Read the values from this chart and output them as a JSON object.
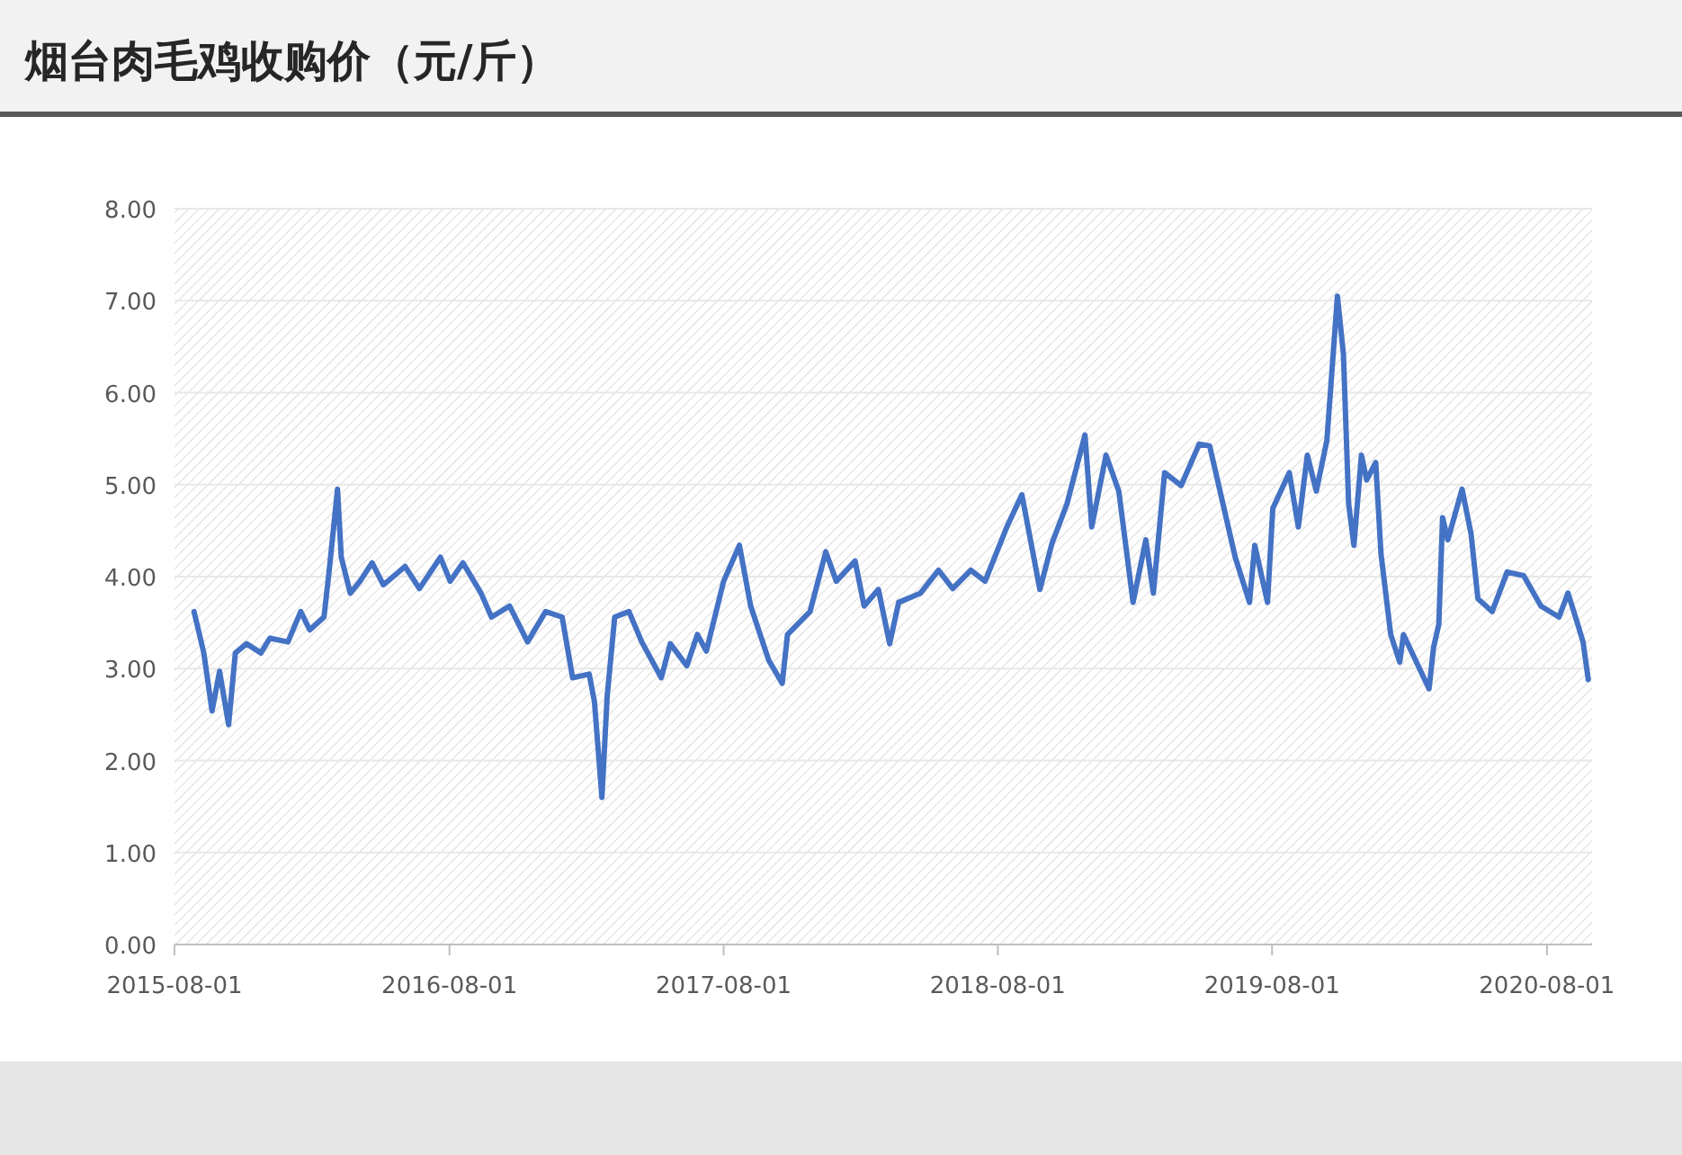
{
  "chart_data": {
    "type": "line",
    "title": "烟台肉毛鸡收购价（元/斤）",
    "x": [
      "2015-08-27",
      "2015-09-09",
      "2015-09-20",
      "2015-09-30",
      "2015-10-12",
      "2015-10-21",
      "2015-11-05",
      "2015-11-24",
      "2015-12-06",
      "2015-12-30",
      "2016-01-16",
      "2016-01-28",
      "2016-02-16",
      "2016-02-23",
      "2016-03-05",
      "2016-03-10",
      "2016-03-22",
      "2016-04-04",
      "2016-04-20",
      "2016-05-05",
      "2016-06-03",
      "2016-06-22",
      "2016-07-20",
      "2016-08-02",
      "2016-08-19",
      "2016-09-12",
      "2016-09-26",
      "2016-10-20",
      "2016-11-13",
      "2016-12-07",
      "2016-12-29",
      "2017-01-12",
      "2017-02-03",
      "2017-02-10",
      "2017-02-20",
      "2017-02-27",
      "2017-03-09",
      "2017-03-28",
      "2017-04-14",
      "2017-05-10",
      "2017-05-22",
      "2017-06-13",
      "2017-06-27",
      "2017-07-09",
      "2017-08-01",
      "2017-08-22",
      "2017-09-06",
      "2017-09-30",
      "2017-10-18",
      "2017-10-25",
      "2017-11-24",
      "2017-12-15",
      "2017-12-29",
      "2018-01-23",
      "2018-02-04",
      "2018-02-23",
      "2018-03-10",
      "2018-03-22",
      "2018-04-20",
      "2018-05-14",
      "2018-06-02",
      "2018-06-26",
      "2018-07-15",
      "2018-08-13",
      "2018-09-02",
      "2018-09-26",
      "2018-10-12",
      "2018-11-01",
      "2018-11-25",
      "2018-12-04",
      "2018-12-23",
      "2019-01-09",
      "2019-01-28",
      "2019-02-14",
      "2019-02-24",
      "2019-03-11",
      "2019-04-02",
      "2019-04-26",
      "2019-05-10",
      "2019-06-13",
      "2019-07-02",
      "2019-07-09",
      "2019-07-26",
      "2019-08-02",
      "2019-08-24",
      "2019-09-05",
      "2019-09-17",
      "2019-09-29",
      "2019-10-13",
      "2019-10-27",
      "2019-11-04",
      "2019-11-11",
      "2019-11-18",
      "2019-11-28",
      "2019-12-05",
      "2019-12-17",
      "2019-12-24",
      "2020-01-06",
      "2020-01-18",
      "2020-01-23",
      "2020-02-26",
      "2020-03-03",
      "2020-03-10",
      "2020-03-15",
      "2020-03-22",
      "2020-04-10",
      "2020-04-22",
      "2020-05-01",
      "2020-05-20",
      "2020-06-09",
      "2020-07-01",
      "2020-07-24",
      "2020-08-17",
      "2020-08-29",
      "2020-09-11",
      "2020-09-18",
      "2020-09-25"
    ],
    "values": [
      3.62,
      3.17,
      2.54,
      2.97,
      2.39,
      3.17,
      3.27,
      3.17,
      3.33,
      3.29,
      3.62,
      3.42,
      3.56,
      4.07,
      4.95,
      4.21,
      3.82,
      3.95,
      4.15,
      3.91,
      4.11,
      3.87,
      4.21,
      3.95,
      4.15,
      3.82,
      3.56,
      3.68,
      3.29,
      3.62,
      3.56,
      2.9,
      2.94,
      2.64,
      1.6,
      2.7,
      3.56,
      3.62,
      3.29,
      2.9,
      3.27,
      3.03,
      3.37,
      3.19,
      3.95,
      4.34,
      3.68,
      3.09,
      2.84,
      3.37,
      3.62,
      4.27,
      3.95,
      4.17,
      3.68,
      3.86,
      3.27,
      3.72,
      3.82,
      4.07,
      3.87,
      4.07,
      3.95,
      4.54,
      4.89,
      3.86,
      4.36,
      4.79,
      5.54,
      4.54,
      5.32,
      4.93,
      3.72,
      4.4,
      3.82,
      5.13,
      4.99,
      5.44,
      5.42,
      4.21,
      3.72,
      4.34,
      3.72,
      4.74,
      5.13,
      4.54,
      5.32,
      4.93,
      5.48,
      7.05,
      6.42,
      4.79,
      4.34,
      5.32,
      5.05,
      5.24,
      4.25,
      3.37,
      3.07,
      3.37,
      2.78,
      3.23,
      3.48,
      4.64,
      4.4,
      4.95,
      4.46,
      3.76,
      3.62,
      4.05,
      4.01,
      3.68,
      3.56,
      3.82,
      3.48,
      3.29,
      2.88
    ],
    "color": "#4472c4",
    "xlim": [
      "2015-08-01",
      "2020-09-30"
    ],
    "xticks": [
      "2015-08-01",
      "2016-08-01",
      "2017-08-01",
      "2018-08-01",
      "2019-08-01",
      "2020-08-01"
    ],
    "ylim": [
      0,
      8
    ],
    "yticks": [
      {
        "value": 0,
        "label": "0.00"
      },
      {
        "value": 1,
        "label": "1.00"
      },
      {
        "value": 2,
        "label": "2.00"
      },
      {
        "value": 3,
        "label": "3.00"
      },
      {
        "value": 4,
        "label": "4.00"
      },
      {
        "value": 5,
        "label": "5.00"
      },
      {
        "value": 6,
        "label": "6.00"
      },
      {
        "value": 7,
        "label": "7.00"
      },
      {
        "value": 8,
        "label": "8.00"
      }
    ],
    "grid": "y",
    "marker": "none",
    "line_style": "solid"
  }
}
